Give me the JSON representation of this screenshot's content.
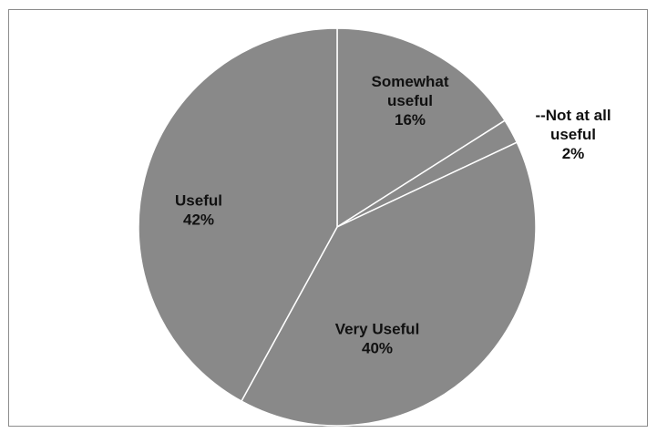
{
  "chart_data": {
    "type": "pie",
    "slices": [
      {
        "label_lines": [
          "Somewhat",
          "useful"
        ],
        "value": 16,
        "value_text": "16%",
        "color": "#898989"
      },
      {
        "label_lines": [
          "--Not at all",
          "useful"
        ],
        "value": 2,
        "value_text": "2%",
        "color": "#898989"
      },
      {
        "label_lines": [
          "Very Useful"
        ],
        "value": 40,
        "value_text": "40%",
        "color": "#898989"
      },
      {
        "label_lines": [
          "Useful"
        ],
        "value": 42,
        "value_text": "42%",
        "color": "#898989"
      }
    ],
    "title": "",
    "legend": "none",
    "start": "12 o'clock, clockwise",
    "slice_border_color": "#ffffff"
  }
}
